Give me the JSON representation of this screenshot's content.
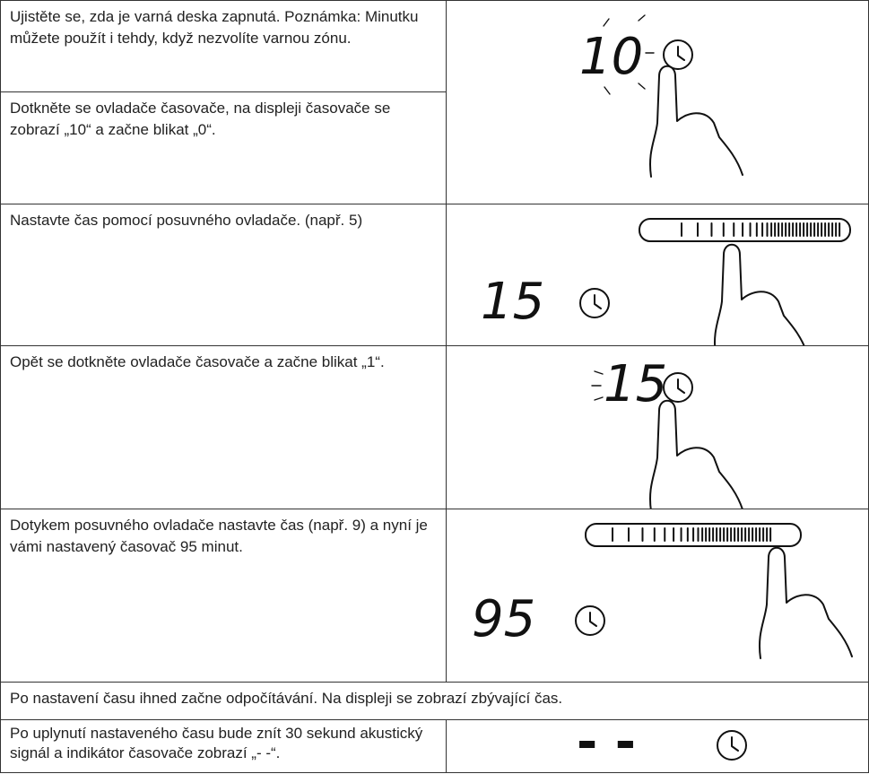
{
  "steps": [
    {
      "text": "Ujistěte se, zda je varná deska zapnutá. Poznámka: Minutku můžete použít i tehdy, když nezvolíte varnou zónu."
    },
    {
      "text": "Dotkněte se ovladače časovače, na displeji časovače se zobrazí „10“ a začne blikat „0“.",
      "display": "10"
    },
    {
      "text": "Nastavte čas pomocí posuvného ovladače. (např. 5)",
      "display": "15"
    },
    {
      "text": "Opět se dotkněte ovladače časovače a začne blikat „1“.",
      "display": "15"
    },
    {
      "text": "Dotykem posuvného ovladače nastavte čas (např. 9) a nyní je vámi nastavený časovač 95 minut.",
      "display": "95"
    },
    {
      "text": "Po nastavení času ihned začne odpočítávání. Na displeji se zobrazí zbývající čas."
    },
    {
      "text": "Po uplynutí nastaveného času bude znít 30 sekund akustický signál a indikátor časovače zobrazí „- -“.",
      "display": "- -"
    }
  ]
}
